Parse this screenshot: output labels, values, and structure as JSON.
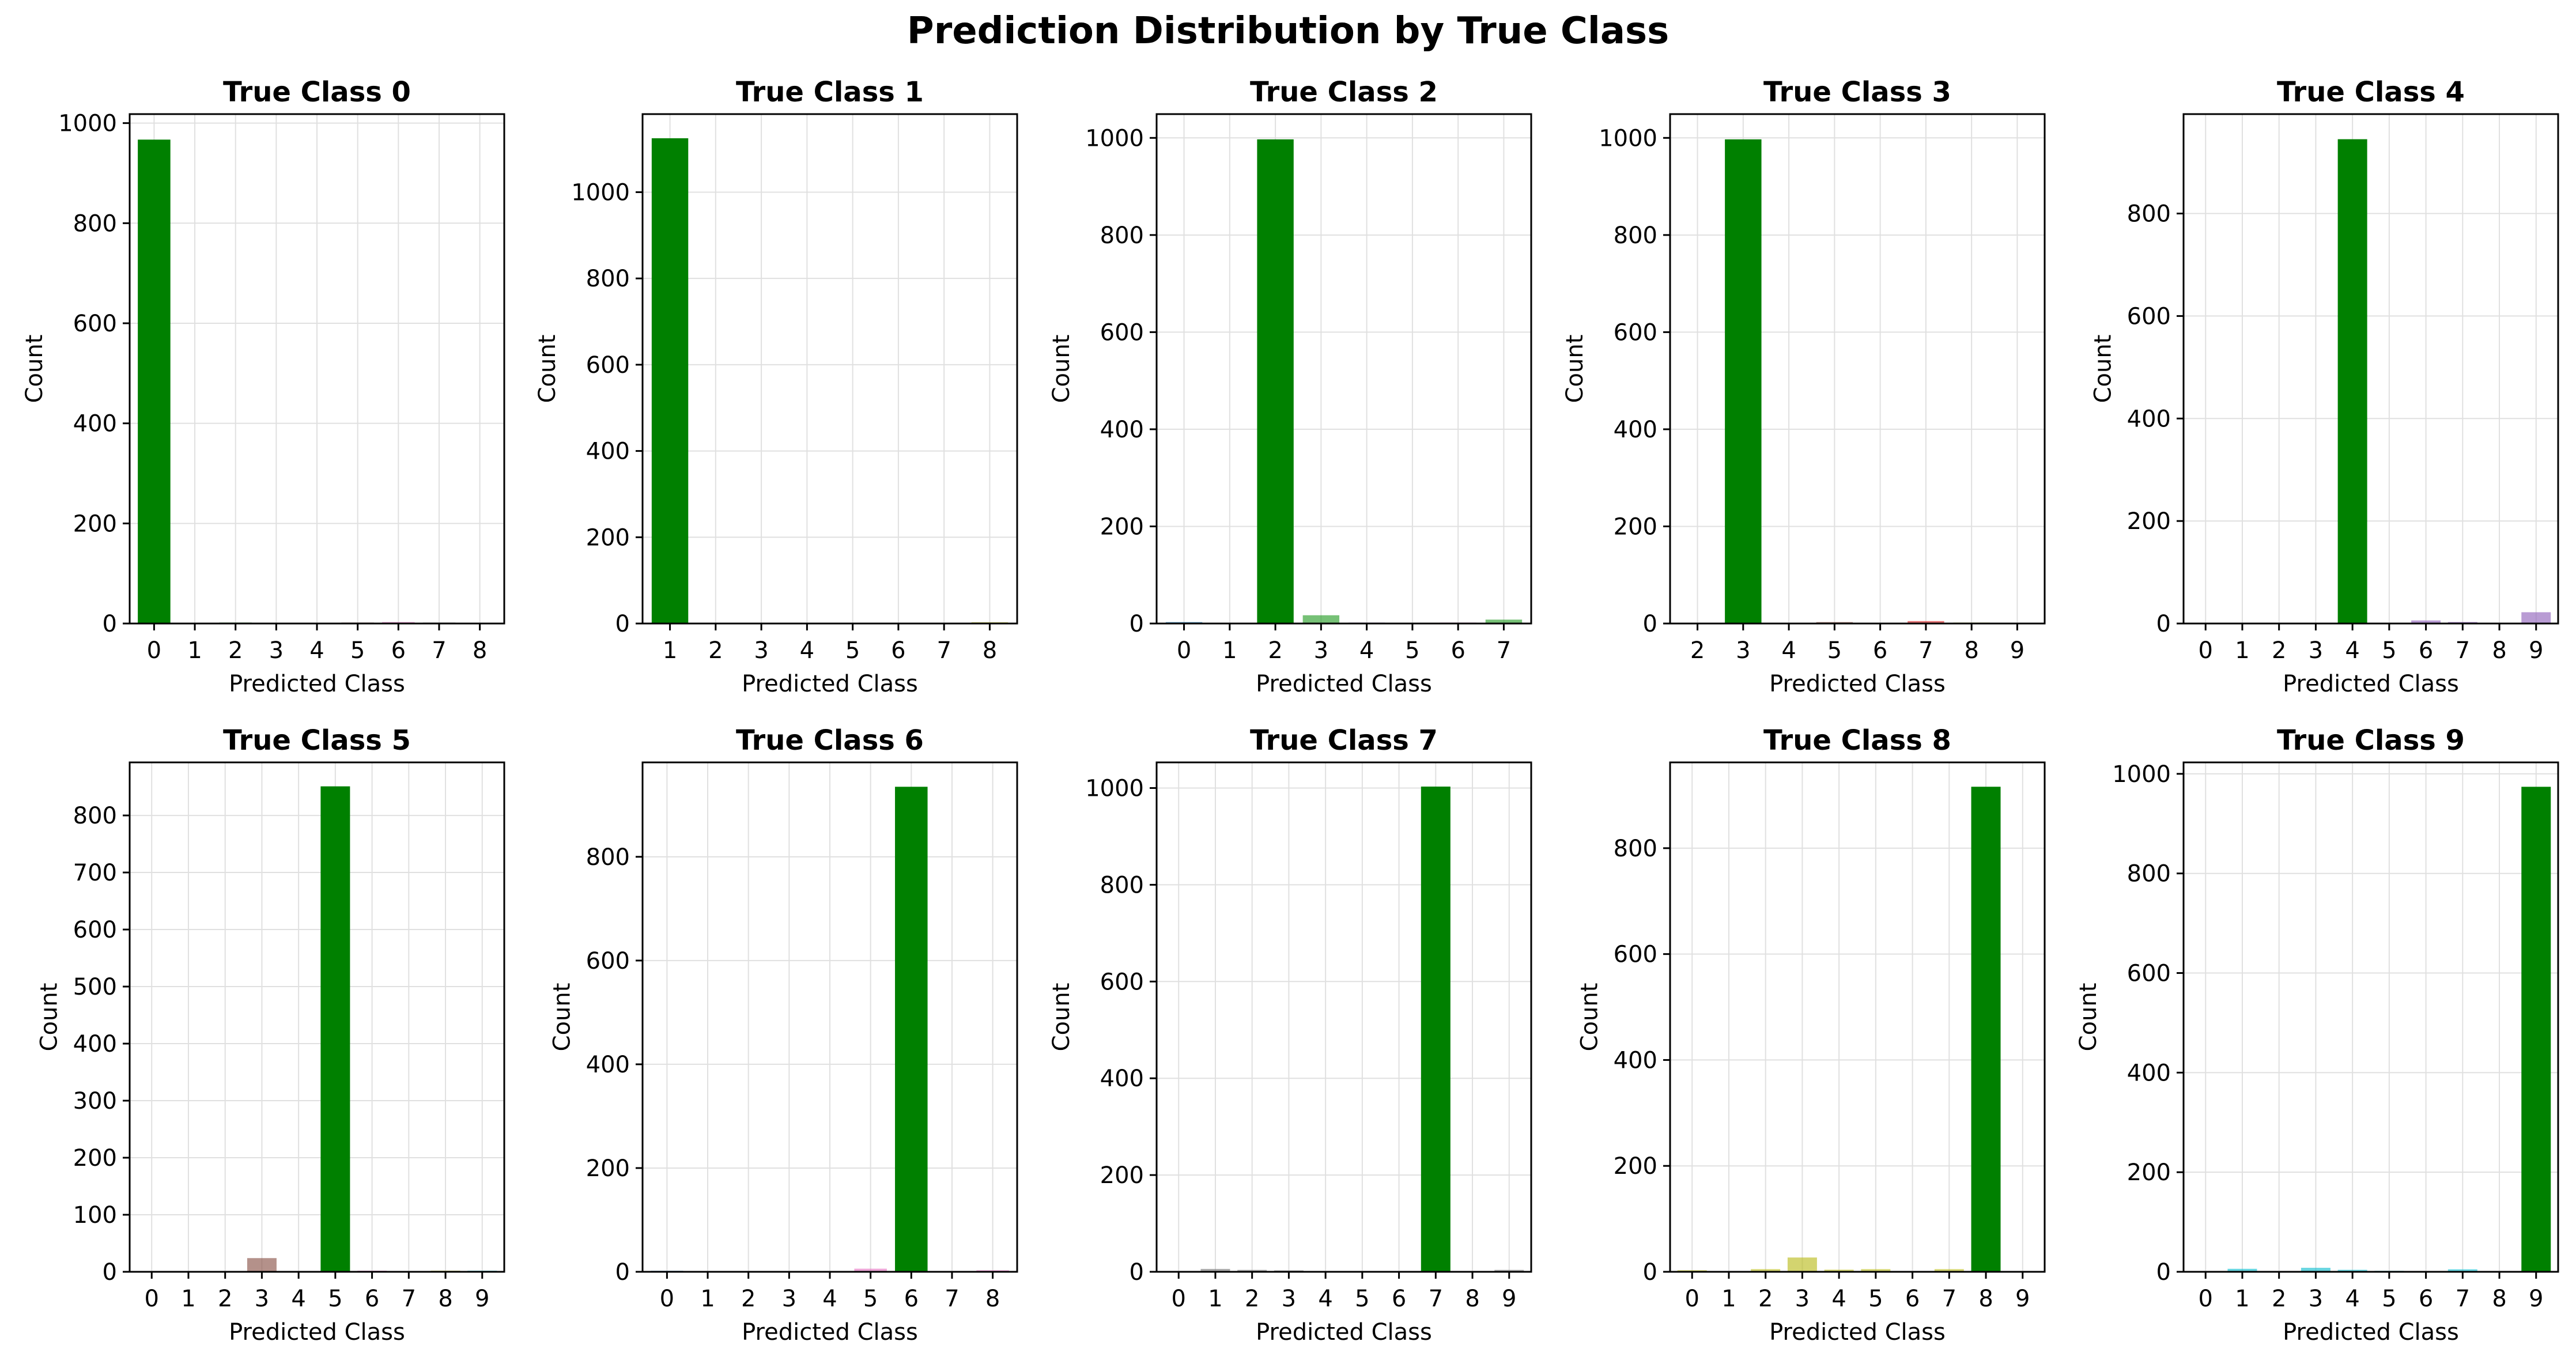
{
  "figure": {
    "title": "Prediction Distribution by True Class",
    "correct_color": "#008000"
  },
  "chart_data": [
    {
      "type": "bar",
      "title": "True Class 0",
      "xlabel": "Predicted Class",
      "ylabel": "Count",
      "categories": [
        "0",
        "1",
        "2",
        "3",
        "4",
        "5",
        "6",
        "7",
        "8"
      ],
      "values": [
        967,
        1,
        2,
        1,
        1,
        2,
        3,
        2,
        1
      ],
      "colors": [
        "#008000",
        "#ff7f0e",
        "#2ca02c",
        "#d62728",
        "#9467bd",
        "#8c564b",
        "#e377c2",
        "#7f7f7f",
        "#bcbd22"
      ],
      "ylim": [
        0,
        1018
      ],
      "yticks": [
        0,
        200,
        400,
        600,
        800,
        1000
      ]
    },
    {
      "type": "bar",
      "title": "True Class 1",
      "xlabel": "Predicted Class",
      "ylabel": "Count",
      "categories": [
        "1",
        "2",
        "3",
        "4",
        "5",
        "6",
        "7",
        "8"
      ],
      "values": [
        1125,
        2,
        1,
        1,
        1,
        1,
        1,
        3
      ],
      "colors": [
        "#008000",
        "#2ca02c",
        "#d62728",
        "#9467bd",
        "#8c564b",
        "#e377c2",
        "#7f7f7f",
        "#bcbd22"
      ],
      "ylim": [
        0,
        1181
      ],
      "yticks": [
        0,
        200,
        400,
        600,
        800,
        1000
      ]
    },
    {
      "type": "bar",
      "title": "True Class 2",
      "xlabel": "Predicted Class",
      "ylabel": "Count",
      "categories": [
        "0",
        "1",
        "2",
        "3",
        "4",
        "5",
        "6",
        "7"
      ],
      "values": [
        3,
        1,
        997,
        17,
        2,
        1,
        2,
        8
      ],
      "colors": [
        "#1f77b4",
        "#ff7f0e",
        "#008000",
        "#2ca02c",
        "#9467bd",
        "#8c564b",
        "#e377c2",
        "#2ca02c"
      ],
      "ylim": [
        0,
        1049
      ],
      "yticks": [
        0,
        200,
        400,
        600,
        800,
        1000
      ]
    },
    {
      "type": "bar",
      "title": "True Class 3",
      "xlabel": "Predicted Class",
      "ylabel": "Count",
      "categories": [
        "2",
        "3",
        "4",
        "5",
        "6",
        "7",
        "8",
        "9"
      ],
      "values": [
        1,
        997,
        1,
        3,
        1,
        5,
        2,
        1
      ],
      "colors": [
        "#2ca02c",
        "#008000",
        "#9467bd",
        "#8c564b",
        "#e377c2",
        "#d62728",
        "#bcbd22",
        "#17becf"
      ],
      "ylim": [
        0,
        1049
      ],
      "yticks": [
        0,
        200,
        400,
        600,
        800,
        1000
      ]
    },
    {
      "type": "bar",
      "title": "True Class 4",
      "xlabel": "Predicted Class",
      "ylabel": "Count",
      "categories": [
        "0",
        "1",
        "2",
        "3",
        "4",
        "5",
        "6",
        "7",
        "8",
        "9"
      ],
      "values": [
        1,
        1,
        1,
        1,
        945,
        1,
        6,
        3,
        1,
        22
      ],
      "colors": [
        "#1f77b4",
        "#ff7f0e",
        "#2ca02c",
        "#d62728",
        "#008000",
        "#8c564b",
        "#9467bd",
        "#9467bd",
        "#bcbd22",
        "#9467bd"
      ],
      "ylim": [
        0,
        994
      ],
      "yticks": [
        0,
        200,
        400,
        600,
        800
      ]
    },
    {
      "type": "bar",
      "title": "True Class 5",
      "xlabel": "Predicted Class",
      "ylabel": "Count",
      "categories": [
        "0",
        "1",
        "2",
        "3",
        "4",
        "5",
        "6",
        "7",
        "8",
        "9"
      ],
      "values": [
        1,
        1,
        1,
        24,
        1,
        851,
        2,
        1,
        2,
        2
      ],
      "colors": [
        "#1f77b4",
        "#ff7f0e",
        "#2ca02c",
        "#8c564b",
        "#9467bd",
        "#008000",
        "#e377c2",
        "#7f7f7f",
        "#bcbd22",
        "#17becf"
      ],
      "ylim": [
        0,
        893
      ],
      "yticks": [
        0,
        100,
        200,
        300,
        400,
        500,
        600,
        700,
        800
      ]
    },
    {
      "type": "bar",
      "title": "True Class 6",
      "xlabel": "Predicted Class",
      "ylabel": "Count",
      "categories": [
        "0",
        "1",
        "2",
        "3",
        "4",
        "5",
        "6",
        "7",
        "8"
      ],
      "values": [
        2,
        1,
        1,
        1,
        1,
        6,
        935,
        1,
        3
      ],
      "colors": [
        "#1f77b4",
        "#ff7f0e",
        "#2ca02c",
        "#d62728",
        "#9467bd",
        "#e377c2",
        "#008000",
        "#7f7f7f",
        "#e377c2"
      ],
      "ylim": [
        0,
        982
      ],
      "yticks": [
        0,
        200,
        400,
        600,
        800
      ]
    },
    {
      "type": "bar",
      "title": "True Class 7",
      "xlabel": "Predicted Class",
      "ylabel": "Count",
      "categories": [
        "0",
        "1",
        "2",
        "3",
        "4",
        "5",
        "6",
        "7",
        "8",
        "9"
      ],
      "values": [
        1,
        6,
        4,
        3,
        1,
        1,
        1,
        1003,
        1,
        4
      ],
      "colors": [
        "#1f77b4",
        "#7f7f7f",
        "#7f7f7f",
        "#7f7f7f",
        "#9467bd",
        "#8c564b",
        "#e377c2",
        "#008000",
        "#bcbd22",
        "#7f7f7f"
      ],
      "ylim": [
        0,
        1053
      ],
      "yticks": [
        0,
        200,
        400,
        600,
        800,
        1000
      ]
    },
    {
      "type": "bar",
      "title": "True Class 8",
      "xlabel": "Predicted Class",
      "ylabel": "Count",
      "categories": [
        "0",
        "1",
        "2",
        "3",
        "4",
        "5",
        "6",
        "7",
        "8",
        "9"
      ],
      "values": [
        3,
        1,
        5,
        27,
        4,
        5,
        1,
        5,
        916,
        1
      ],
      "colors": [
        "#bcbd22",
        "#ff7f0e",
        "#bcbd22",
        "#bcbd22",
        "#bcbd22",
        "#bcbd22",
        "#e377c2",
        "#bcbd22",
        "#008000",
        "#17becf"
      ],
      "ylim": [
        0,
        962
      ],
      "yticks": [
        0,
        200,
        400,
        600,
        800
      ]
    },
    {
      "type": "bar",
      "title": "True Class 9",
      "xlabel": "Predicted Class",
      "ylabel": "Count",
      "categories": [
        "0",
        "1",
        "2",
        "3",
        "4",
        "5",
        "6",
        "7",
        "8",
        "9"
      ],
      "values": [
        1,
        6,
        1,
        8,
        4,
        2,
        1,
        5,
        1,
        974
      ],
      "colors": [
        "#17becf",
        "#17becf",
        "#2ca02c",
        "#17becf",
        "#17becf",
        "#17becf",
        "#e377c2",
        "#17becf",
        "#bcbd22",
        "#008000"
      ],
      "ylim": [
        0,
        1023
      ],
      "yticks": [
        0,
        200,
        400,
        600,
        800,
        1000
      ]
    }
  ]
}
